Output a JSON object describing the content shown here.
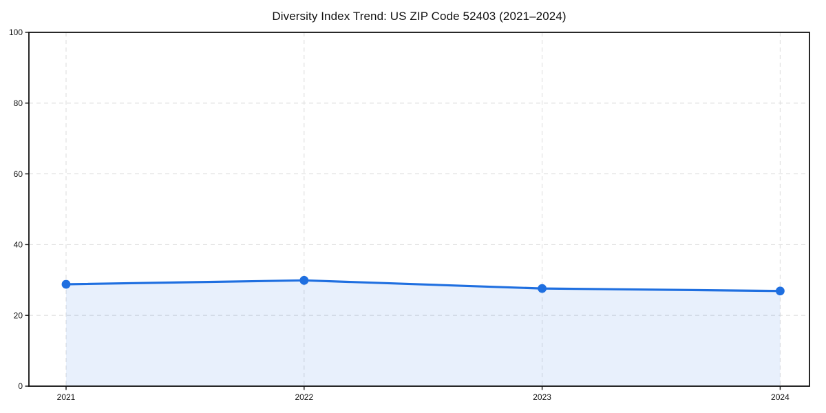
{
  "chart_data": {
    "type": "line",
    "title": "Diversity Index Trend: US ZIP Code 52403 (2021–2024)",
    "x": [
      "2021",
      "2022",
      "2023",
      "2024"
    ],
    "series": [
      {
        "name": "Diversity Index",
        "values": [
          28.8,
          29.9,
          27.6,
          26.9
        ]
      }
    ],
    "xlabel": "",
    "ylabel": "",
    "ylim": [
      0,
      100
    ],
    "yticks": [
      0,
      20,
      40,
      60,
      80,
      100
    ],
    "grid": "dashed horizontal and vertical",
    "legend_position": "none",
    "line_color": "#1f6fe0",
    "fill_color": "rgba(31,111,224,0.10)",
    "marker": "circle",
    "area_span": "between first and last data points only"
  }
}
